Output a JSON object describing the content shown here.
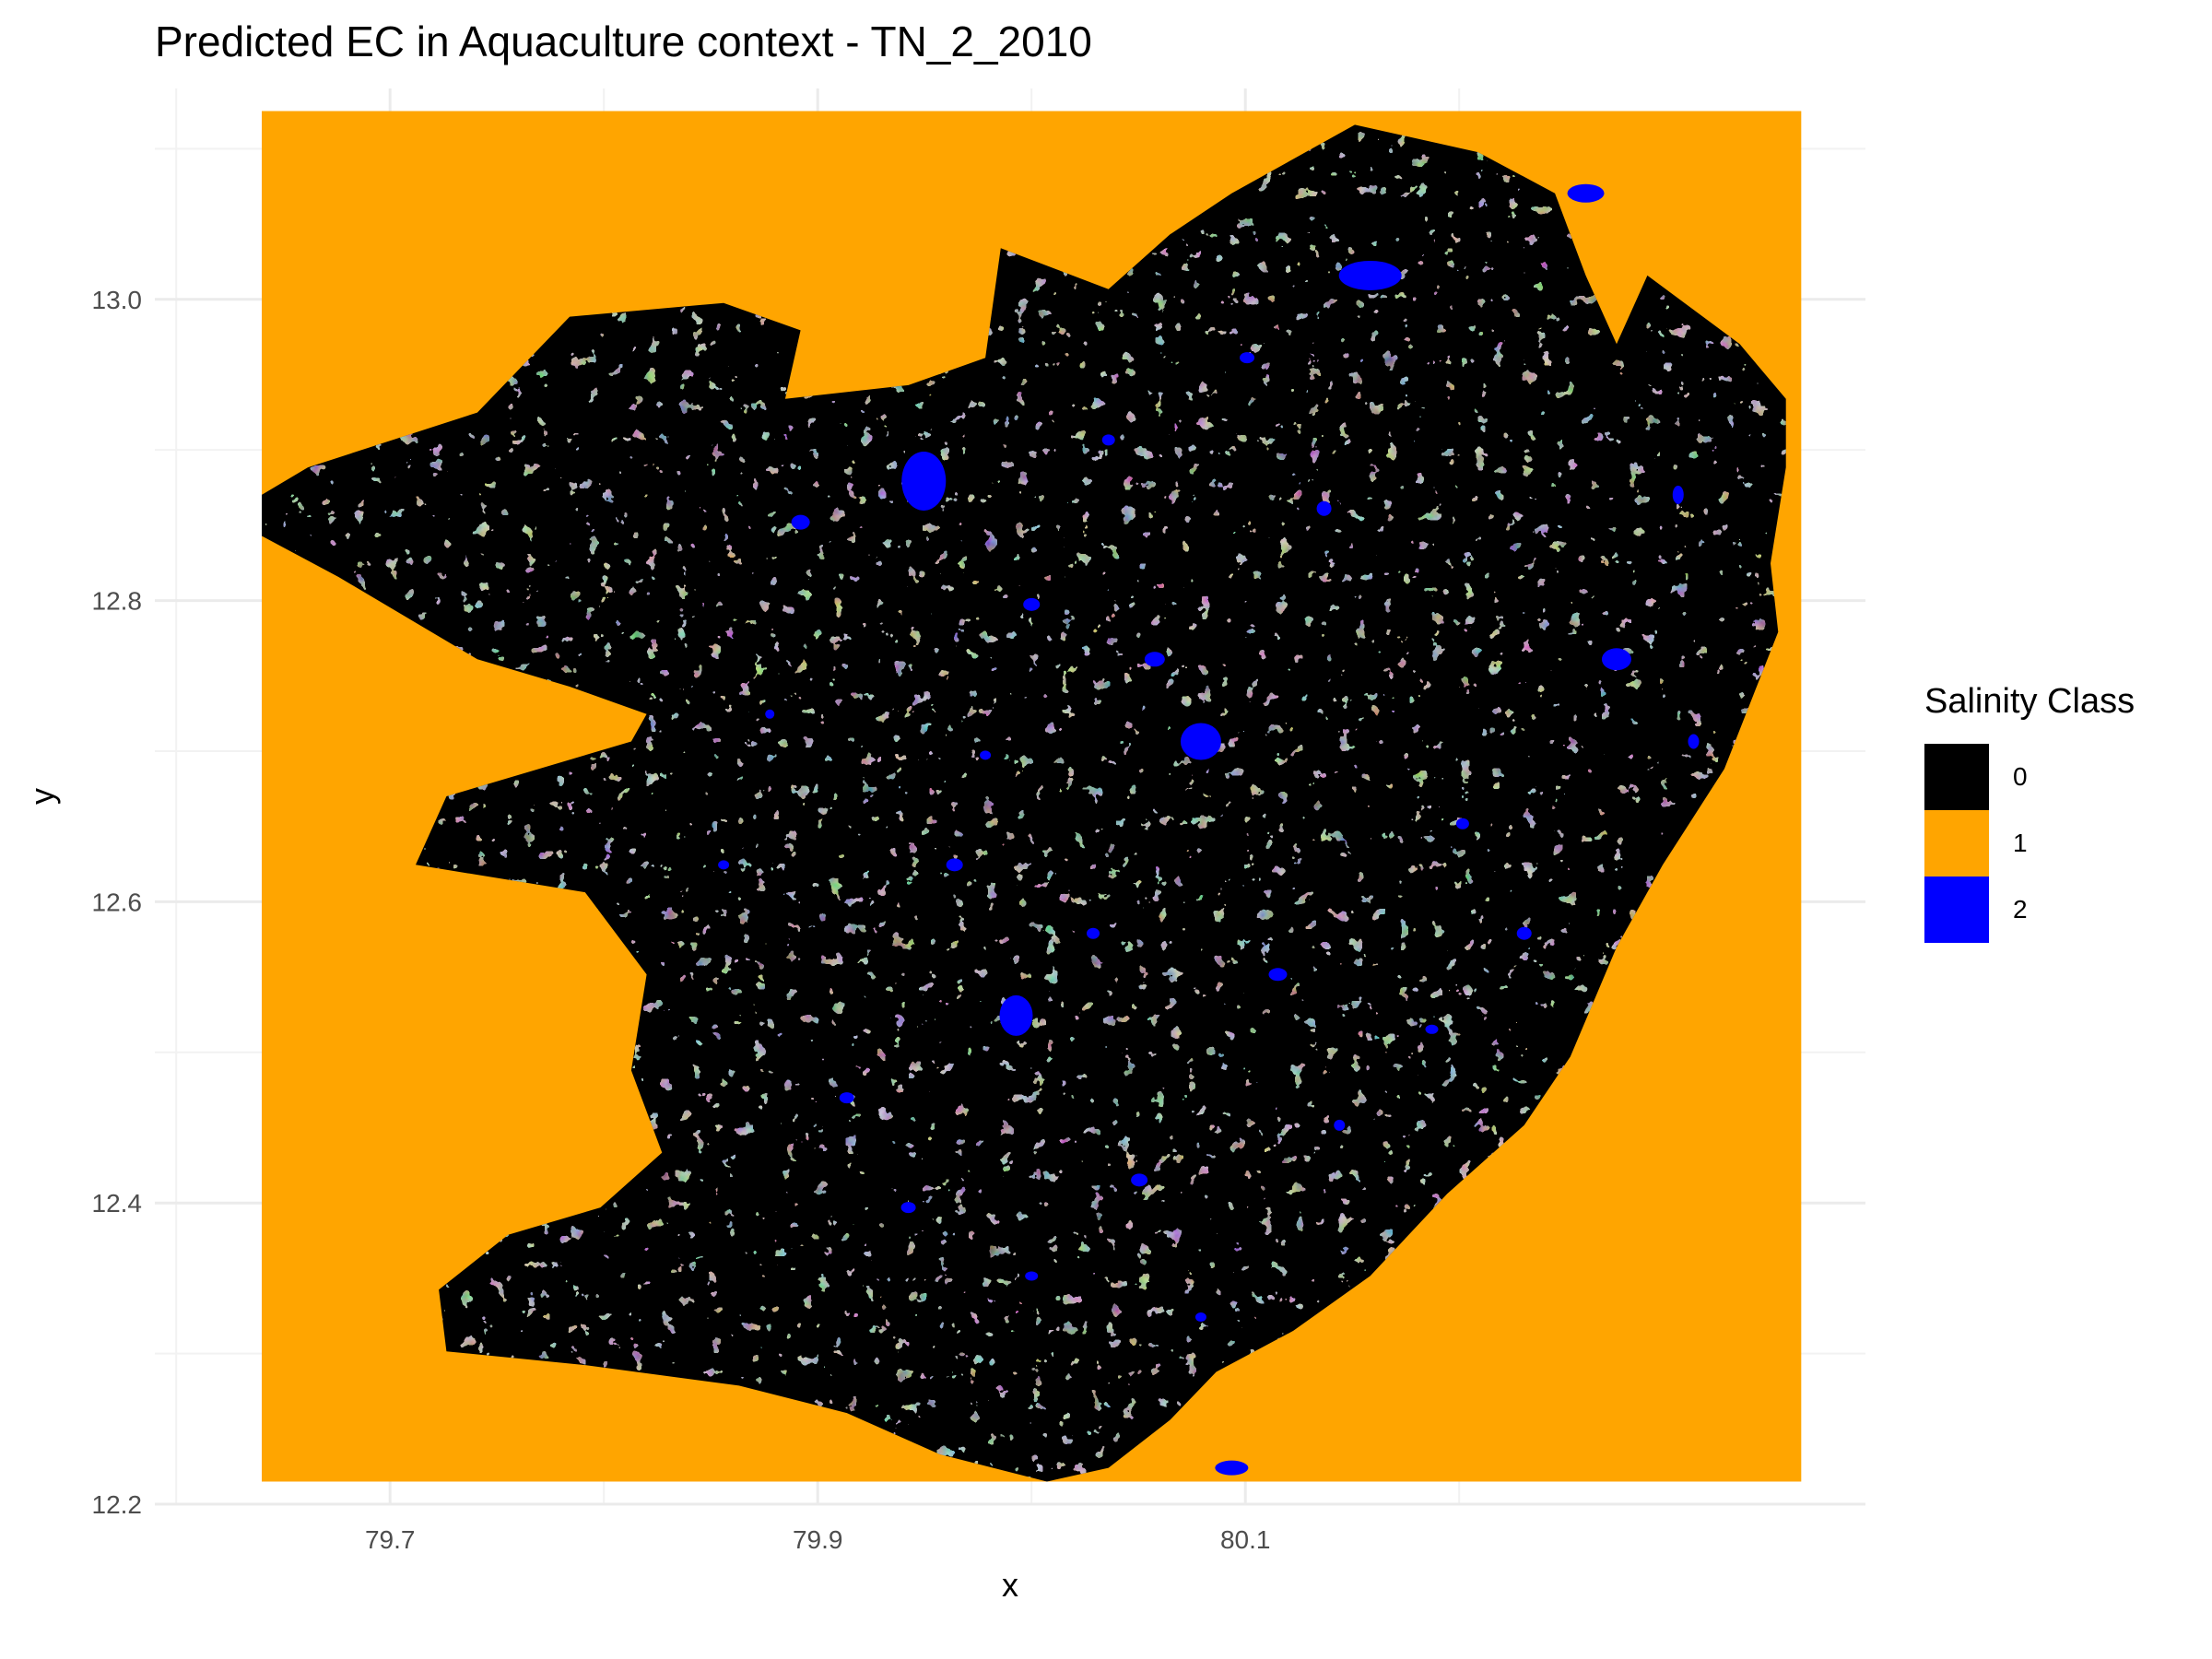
{
  "title": "Predicted EC in Aquaculture context - TN_2_2010",
  "xlabel": "x",
  "ylabel": "y",
  "legend": {
    "title": "Salinity Class",
    "items": [
      {
        "label": "0",
        "color": "#000000"
      },
      {
        "label": "1",
        "color": "#FFA500"
      },
      {
        "label": "2",
        "color": "#0000FF"
      }
    ]
  },
  "chart_data": {
    "type": "heatmap",
    "title": "Predicted EC in Aquaculture context - TN_2_2010",
    "xlabel": "x",
    "ylabel": "y",
    "x_ticks": [
      79.7,
      79.9,
      80.1
    ],
    "y_ticks": [
      12.2,
      12.4,
      12.6,
      12.8,
      13.0
    ],
    "xlim": [
      79.59,
      80.39
    ],
    "ylim": [
      12.2,
      13.14
    ],
    "raster_extent": {
      "x": [
        79.64,
        80.36
      ],
      "y": [
        12.215,
        13.125
      ]
    },
    "classes": [
      {
        "value": 0,
        "color": "#000000"
      },
      {
        "value": 1,
        "color": "#FFA500"
      },
      {
        "value": 2,
        "color": "#0000FF"
      }
    ],
    "background_class": 1,
    "grid": true,
    "legend_position": "right"
  }
}
